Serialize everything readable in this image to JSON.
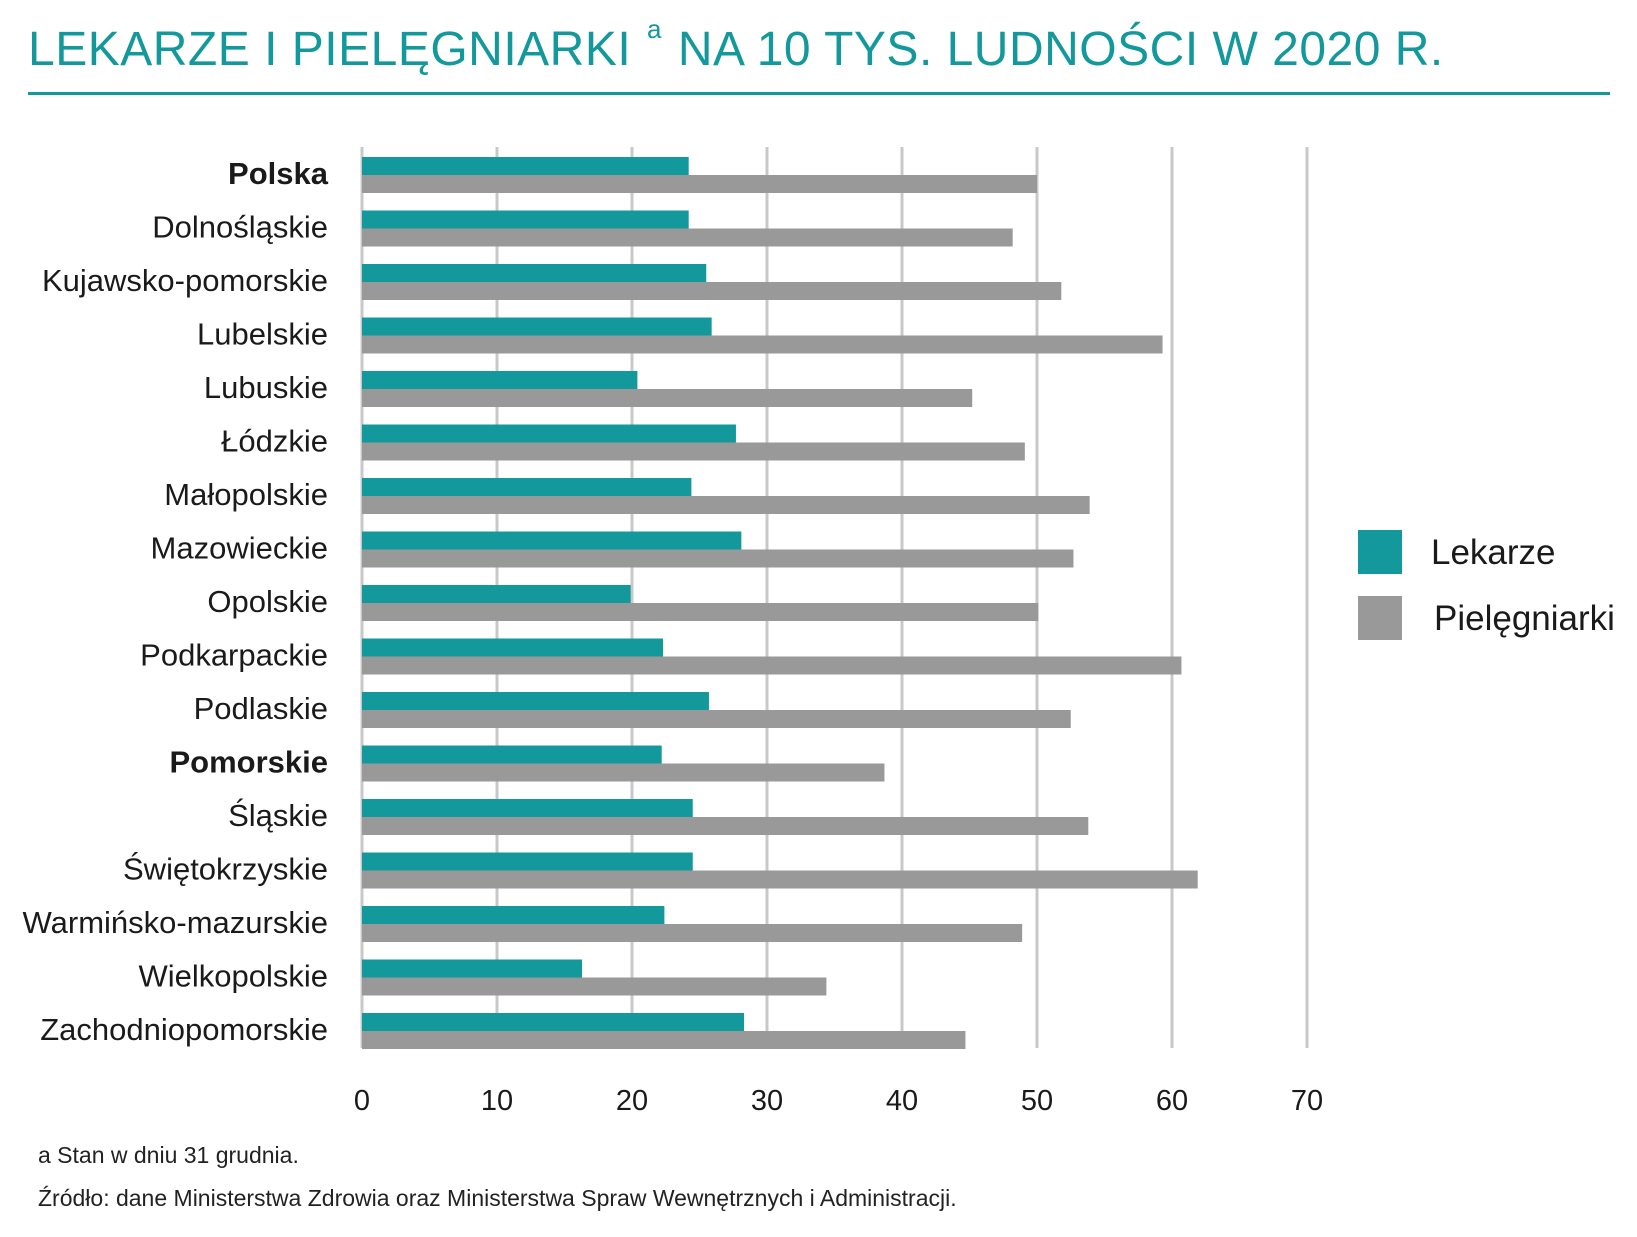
{
  "title": {
    "main": "LEKARZE I PIELĘGNIARKI",
    "superscript": "a",
    "rest": "NA 10 TYS. LUDNOŚCI W 2020 R."
  },
  "footnote": "a Stan w dniu 31 grudnia.",
  "source": "Źródło:  dane Ministerstwa Zdrowia oraz Ministerstwa Spraw Wewnętrznych i Administracji.",
  "colors": {
    "accent": "#13999c",
    "lekarze": "#13999c",
    "pielegniarki": "#999999",
    "grid": "#c8c8c8"
  },
  "chart_data": {
    "type": "bar",
    "orientation": "horizontal",
    "categories": [
      "Polska",
      "Dolnośląskie",
      "Kujawsko-pomorskie",
      "Lubelskie",
      "Lubuskie",
      "Łódzkie",
      "Małopolskie",
      "Mazowieckie",
      "Opolskie",
      "Podkarpackie",
      "Podlaskie",
      "Pomorskie",
      "Śląskie",
      "Świętokrzyskie",
      "Warmińsko-mazurskie",
      "Wielkopolskie",
      "Zachodniopomorskie"
    ],
    "bold_categories": [
      "Polska",
      "Pomorskie"
    ],
    "series": [
      {
        "name": "Lekarze",
        "color": "#13999c",
        "values": [
          24.2,
          24.2,
          25.5,
          25.9,
          20.4,
          27.7,
          24.4,
          28.1,
          19.9,
          22.3,
          25.7,
          22.2,
          24.5,
          24.5,
          22.4,
          16.3,
          28.3
        ]
      },
      {
        "name": "Pielęgniarki",
        "color": "#999999",
        "values": [
          50.0,
          48.2,
          51.8,
          59.3,
          45.2,
          49.1,
          53.9,
          52.7,
          50.1,
          60.7,
          52.5,
          38.7,
          53.8,
          61.9,
          48.9,
          34.4,
          44.7
        ]
      }
    ],
    "xlim": [
      0,
      70
    ],
    "xticks": [
      0,
      10,
      20,
      30,
      40,
      50,
      60,
      70
    ],
    "grid": true,
    "legend_position": "right"
  }
}
